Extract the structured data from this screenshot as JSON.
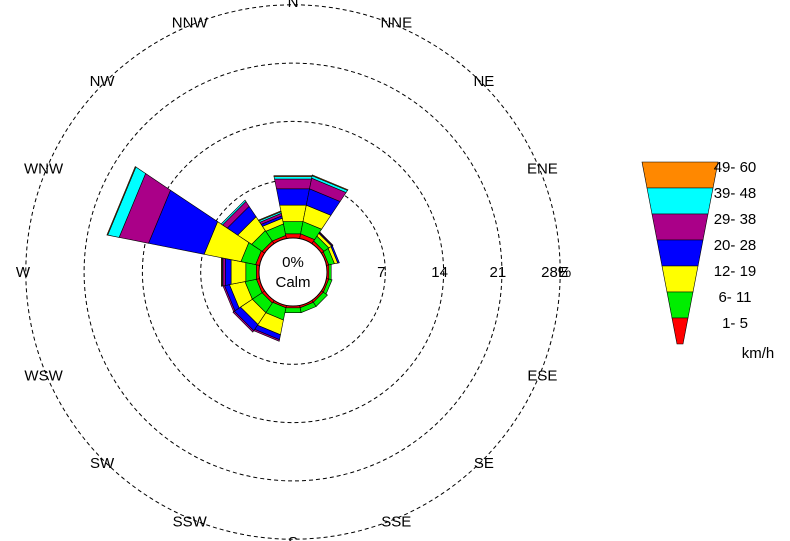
{
  "chart_data": {
    "type": "windrose",
    "title": "",
    "calm": {
      "value_label": "0%",
      "label": "Calm"
    },
    "radial_axis": {
      "max": 28,
      "rings": [
        7,
        14,
        21,
        28
      ],
      "ring_labels": [
        "7",
        "14",
        "21",
        "28%"
      ]
    },
    "directions": [
      "N",
      "NNE",
      "NE",
      "ENE",
      "E",
      "ESE",
      "SE",
      "SSE",
      "S",
      "SSW",
      "SW",
      "WSW",
      "W",
      "WNW",
      "NW",
      "NNW"
    ],
    "direction_labels": [
      "N",
      "NNE",
      "NE",
      "ENE",
      "E",
      "ESE",
      "SE",
      "SSE",
      "S",
      "SSW",
      "SW",
      "WSW",
      "W",
      "WNW",
      "NW",
      "NNW"
    ],
    "speed_bins": [
      "1- 5",
      "6- 11",
      "12- 19",
      "20- 28",
      "29- 38",
      "39- 48",
      "49- 60"
    ],
    "speed_unit": "km/h",
    "colors": [
      "#ff0000",
      "#00ee00",
      "#ffff00",
      "#0000ff",
      "#aa0088",
      "#00ffff",
      "#ff8800"
    ],
    "frequencies_percent": {
      "N": [
        0.6,
        1.5,
        2.0,
        2.0,
        1.2,
        0.3,
        0.1
      ],
      "NNE": [
        0.6,
        1.5,
        2.0,
        2.0,
        1.3,
        0.3,
        0.1
      ],
      "NE": [
        0.4,
        0.7,
        0.4,
        0.1,
        0.1,
        0.0,
        0.0
      ],
      "ENE": [
        0.3,
        0.7,
        0.4,
        0.2,
        0.0,
        0.0,
        0.0
      ],
      "E": [
        0.3,
        0.3,
        0.0,
        0.0,
        0.0,
        0.0,
        0.0
      ],
      "ESE": [
        0.3,
        0.4,
        0.0,
        0.0,
        0.0,
        0.0,
        0.0
      ],
      "SE": [
        0.3,
        0.6,
        0.0,
        0.0,
        0.0,
        0.0,
        0.0
      ],
      "SSE": [
        0.3,
        0.6,
        0.0,
        0.0,
        0.0,
        0.0,
        0.0
      ],
      "S": [
        0.3,
        0.6,
        0.0,
        0.0,
        0.0,
        0.0,
        0.0
      ],
      "SSW": [
        0.3,
        1.5,
        1.8,
        0.6,
        0.2,
        0.0,
        0.0
      ],
      "SW": [
        0.4,
        1.4,
        1.7,
        0.9,
        0.2,
        0.0,
        0.0
      ],
      "WSW": [
        0.4,
        1.4,
        1.9,
        0.6,
        0.2,
        0.0,
        0.0
      ],
      "W": [
        0.4,
        1.3,
        1.8,
        0.7,
        0.3,
        0.1,
        0.1
      ],
      "WNW": [
        0.5,
        1.8,
        4.5,
        6.8,
        3.6,
        1.4,
        0.1
      ],
      "NW": [
        0.4,
        1.5,
        2.0,
        1.5,
        0.7,
        0.2,
        0.0
      ],
      "NNW": [
        0.4,
        1.4,
        0.7,
        0.3,
        0.3,
        0.2,
        0.1
      ]
    },
    "legend": {
      "position": "right"
    },
    "grid": true
  }
}
